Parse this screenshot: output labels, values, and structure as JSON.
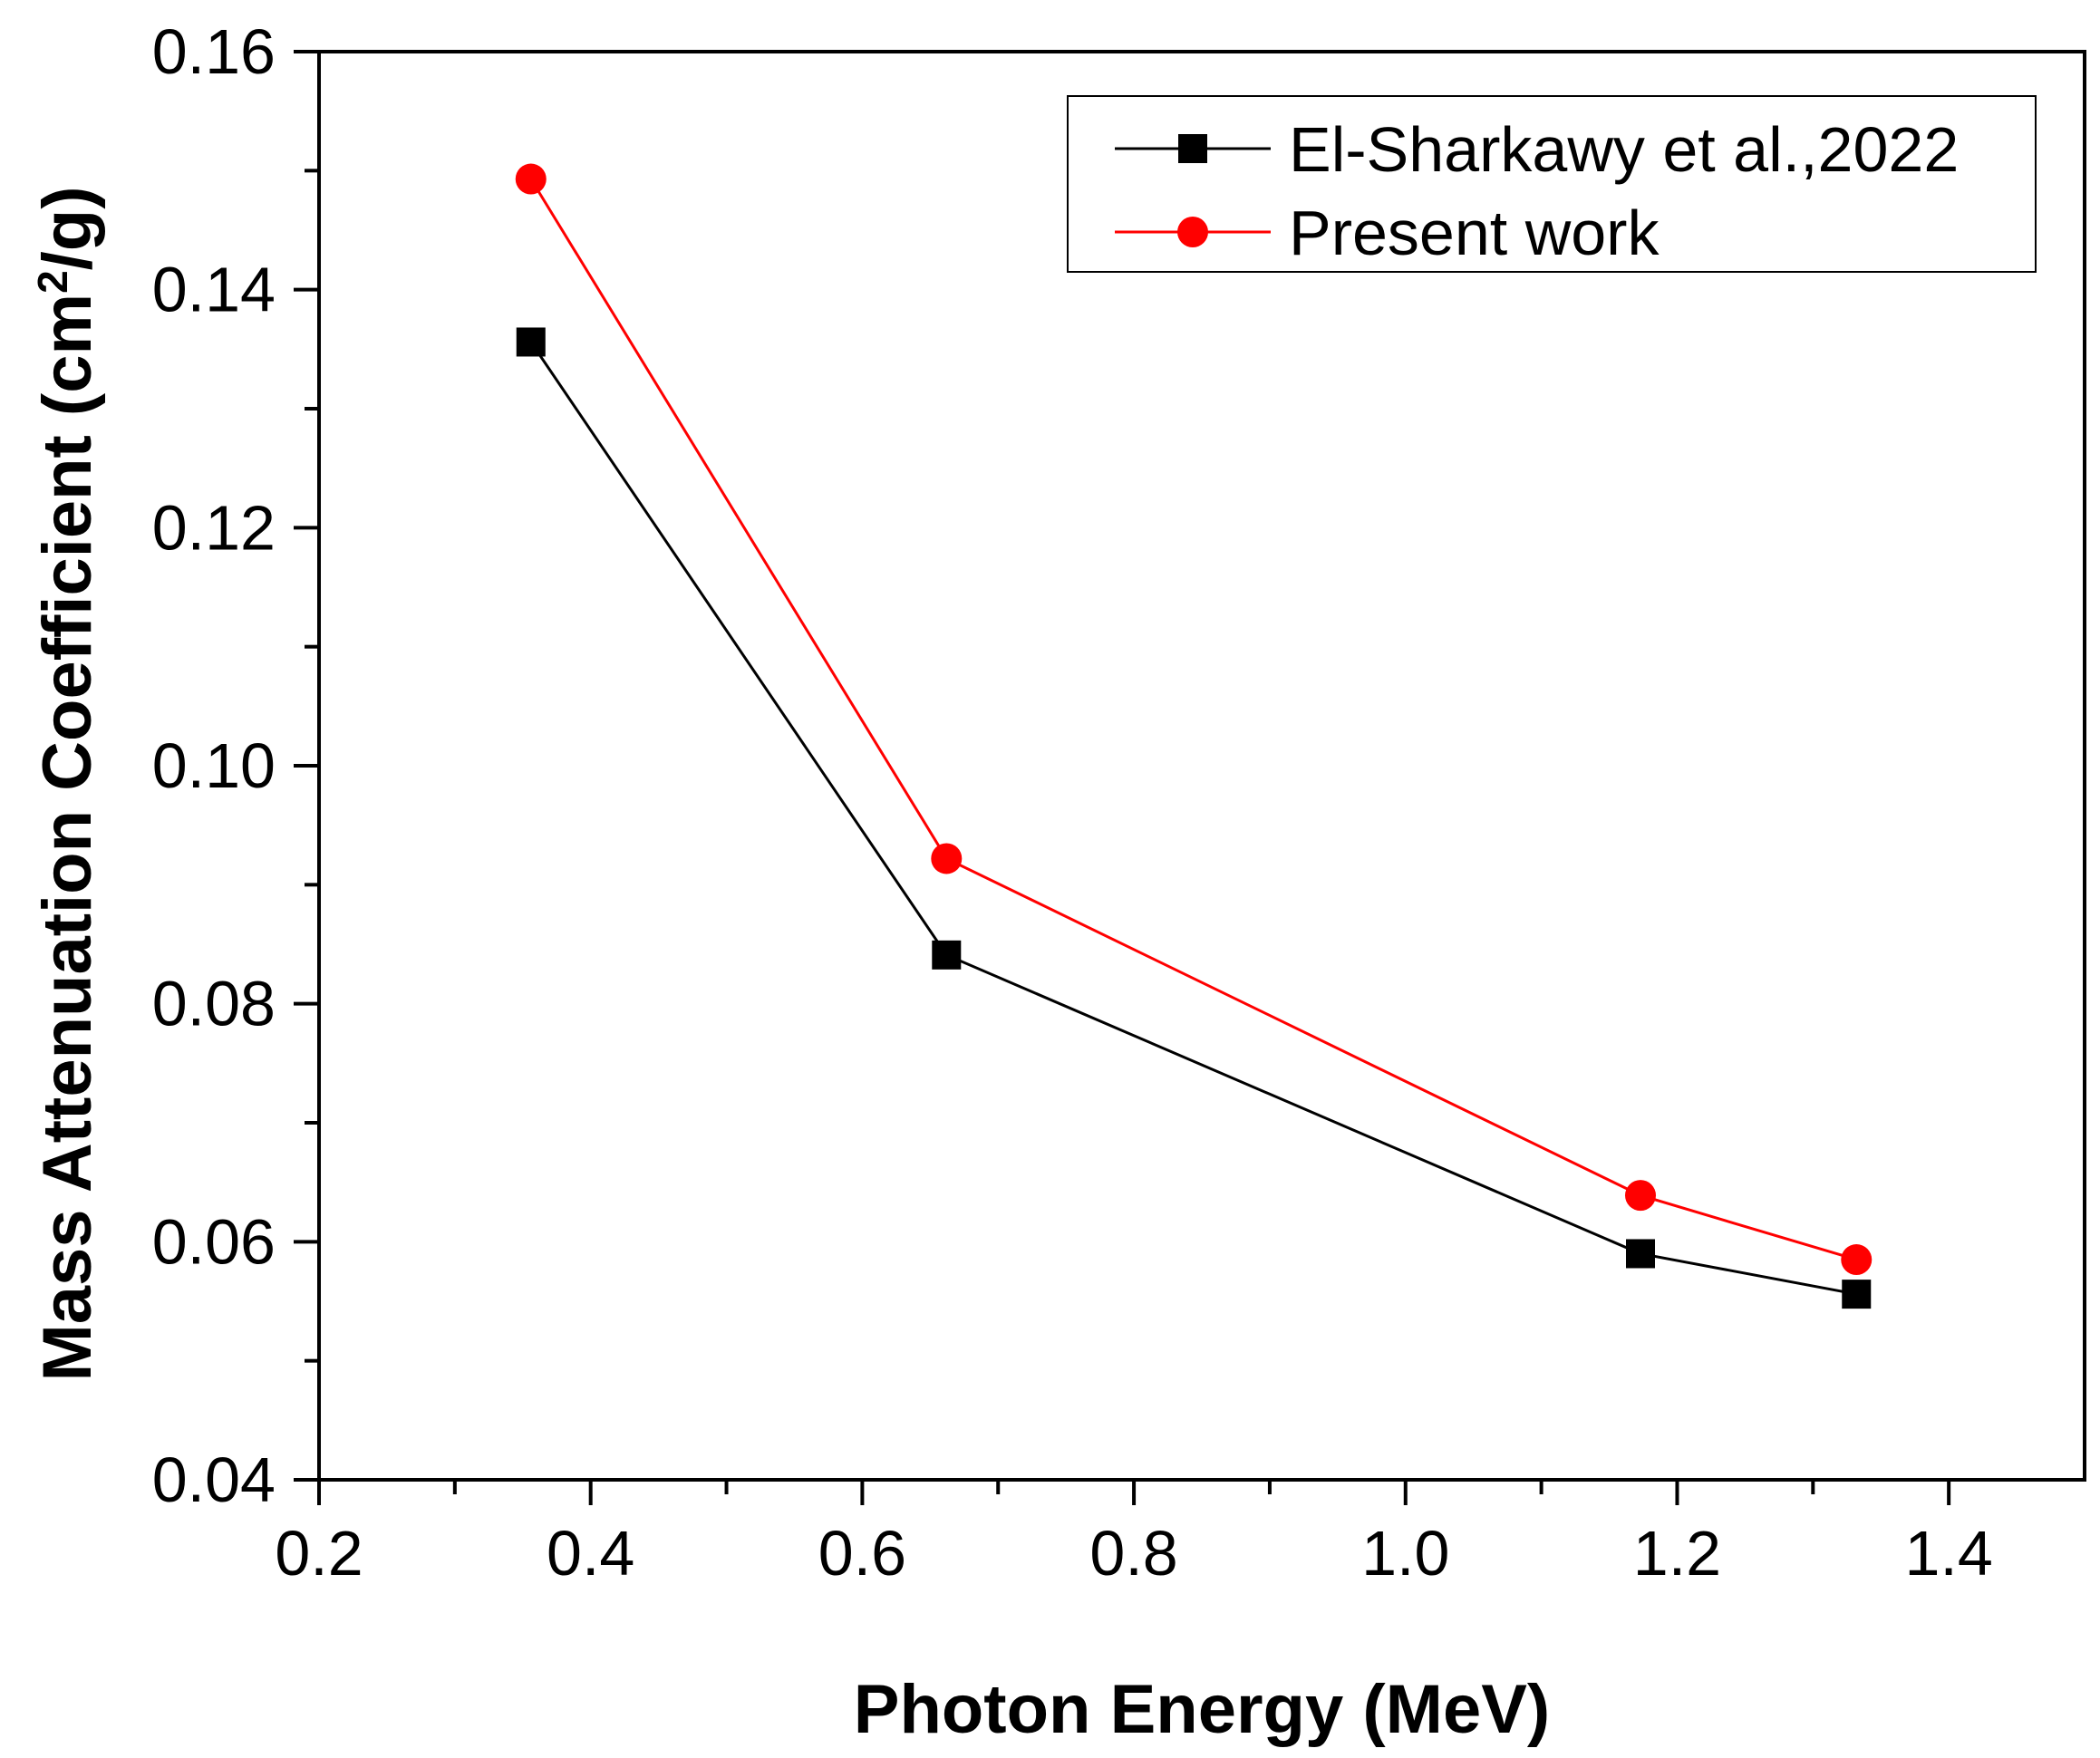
{
  "chart_data": {
    "type": "line",
    "xlabel": "Photon Energy (MeV)",
    "ylabel": {
      "prefix": "Mass Attenuation Coefficient (cm",
      "superscript": "2",
      "suffix": "/g)"
    },
    "xlim": [
      0.2,
      1.5
    ],
    "ylim": [
      0.04,
      0.16
    ],
    "x_ticks": [
      0.2,
      0.4,
      0.6,
      0.8,
      1.0,
      1.2,
      1.4
    ],
    "x_tick_labels": [
      "0.2",
      "0.4",
      "0.6",
      "0.8",
      "1.0",
      "1.2",
      "1.4"
    ],
    "y_ticks": [
      0.04,
      0.06,
      0.08,
      0.1,
      0.12,
      0.14,
      0.16
    ],
    "y_tick_labels": [
      "0.04",
      "0.06",
      "0.08",
      "0.10",
      "0.12",
      "0.14",
      "0.16"
    ],
    "grid": false,
    "legend_position": "top-right",
    "x": [
      0.356,
      0.662,
      1.173,
      1.332
    ],
    "series": [
      {
        "name": "El-Sharkawy et al.,2022",
        "marker": "square",
        "color": "#000000",
        "values": [
          0.1356,
          0.0841,
          0.059,
          0.0556
        ]
      },
      {
        "name": "Present work",
        "marker": "circle",
        "color": "#ff0000",
        "values": [
          0.1493,
          0.0922,
          0.0639,
          0.0585
        ]
      }
    ]
  }
}
